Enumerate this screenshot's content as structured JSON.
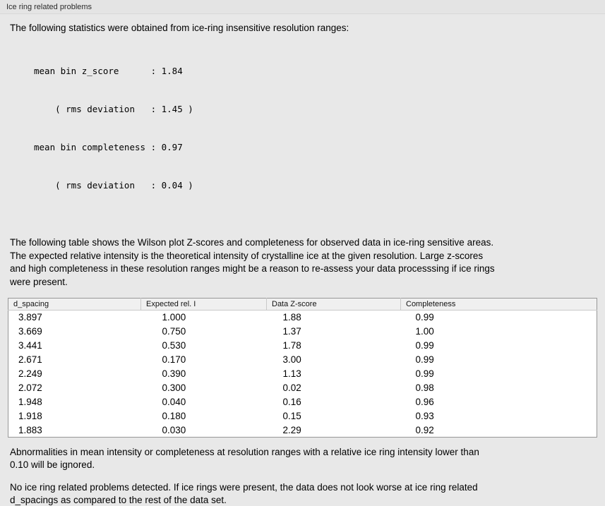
{
  "panel": {
    "title": "Ice ring related problems"
  },
  "intro": "The following statistics were obtained from ice-ring insensitive resolution ranges:",
  "stats": {
    "lines": [
      "mean bin z_score      : 1.84",
      "    ( rms deviation   : 1.45 )",
      "mean bin completeness : 0.97",
      "    ( rms deviation   : 0.04 )"
    ]
  },
  "description": {
    "lines": [
      "The following table shows the Wilson plot Z-scores and completeness for observed data in ice-ring sensitive areas.",
      "The expected relative intensity is the theoretical intensity of crystalline ice at the given resolution. Large z-scores",
      "and high completeness in these resolution ranges might be a reason to re-assess your data processsing if ice rings",
      "were present."
    ]
  },
  "table": {
    "headers": [
      "d_spacing",
      "Expected rel. I",
      "Data Z-score",
      "Completeness"
    ],
    "rows": [
      [
        "3.897",
        "1.000",
        "1.88",
        "0.99"
      ],
      [
        "3.669",
        "0.750",
        "1.37",
        "1.00"
      ],
      [
        "3.441",
        "0.530",
        "1.78",
        "0.99"
      ],
      [
        "2.671",
        "0.170",
        "3.00",
        "0.99"
      ],
      [
        "2.249",
        "0.390",
        "1.13",
        "0.99"
      ],
      [
        "2.072",
        "0.300",
        "0.02",
        "0.98"
      ],
      [
        "1.948",
        "0.040",
        "0.16",
        "0.96"
      ],
      [
        "1.918",
        "0.180",
        "0.15",
        "0.93"
      ],
      [
        "1.883",
        "0.030",
        "2.29",
        "0.92"
      ]
    ]
  },
  "note": {
    "lines": [
      "Abnormalities in mean intensity or completeness at resolution ranges with a relative ice ring intensity lower than",
      "0.10 will be ignored."
    ]
  },
  "conclusion": {
    "lines": [
      "No ice ring related problems detected. If ice rings were present, the data does not look worse at ice ring related",
      "d_spacings as compared to the rest of the data set."
    ]
  }
}
